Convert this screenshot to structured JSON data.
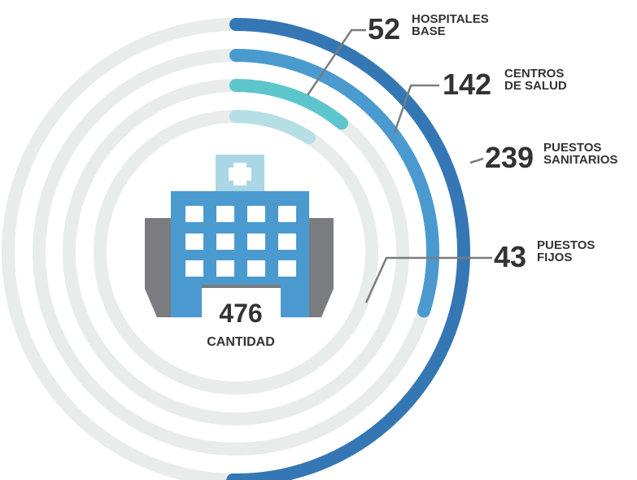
{
  "chart_data": {
    "type": "radial_bar",
    "total": 476,
    "total_label": "CANTIDAD",
    "categories": [
      [
        "HOSPITALES",
        "BASE"
      ],
      [
        "CENTROS",
        "DE SALUD"
      ],
      [
        "PUESTOS",
        "SANITARIOS"
      ],
      [
        "PUESTOS",
        "FIJOS"
      ]
    ],
    "values": [
      52,
      142,
      239,
      43
    ],
    "colors": [
      "#5cc6cc",
      "#4a9ad0",
      "#3577b5",
      "#b5dee5"
    ],
    "track_color": "#e8eceb"
  }
}
